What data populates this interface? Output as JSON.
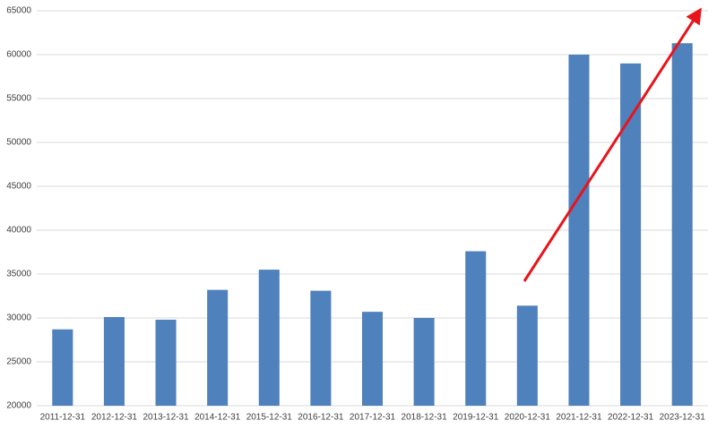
{
  "chart_data": {
    "type": "bar",
    "categories": [
      "2011-12-31",
      "2012-12-31",
      "2013-12-31",
      "2014-12-31",
      "2015-12-31",
      "2016-12-31",
      "2017-12-31",
      "2018-12-31",
      "2019-12-31",
      "2020-12-31",
      "2021-12-31",
      "2022-12-31",
      "2023-12-31"
    ],
    "values": [
      28700,
      30100,
      29800,
      33200,
      35500,
      33100,
      30700,
      30000,
      37600,
      31400,
      60000,
      59000,
      61300
    ],
    "color": "#4f81bd",
    "ylim": [
      20000,
      65000
    ],
    "yticks": [
      20000,
      25000,
      30000,
      35000,
      40000,
      45000,
      50000,
      55000,
      60000,
      65000
    ],
    "grid": true
  }
}
